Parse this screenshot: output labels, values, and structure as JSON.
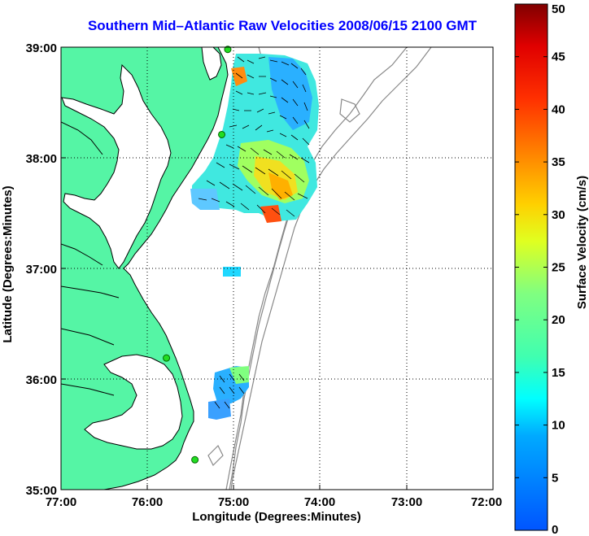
{
  "title": "Southern Mid–Atlantic Raw Velocities 2008/06/15 2100 GMT",
  "map": {
    "xlabel": "Longitude (Degrees:Minutes)",
    "ylabel": "Latitude (Degrees:Minutes)",
    "x_ticks": [
      "77:00",
      "76:00",
      "75:00",
      "74:00",
      "73:00",
      "72:00"
    ],
    "y_ticks": [
      "39:00",
      "38:00",
      "37:00",
      "36:00",
      "35:00"
    ],
    "lon_range": [
      -77,
      -72
    ],
    "lat_range": [
      35,
      39
    ],
    "grid": "dotted",
    "land_color": "#55f5a5",
    "coast_color": "#000000",
    "bathymetry_color": "#888888"
  },
  "colorbar": {
    "label": "Surface Velocity (cm/s)",
    "ticks": [
      "0",
      "5",
      "10",
      "15",
      "20",
      "25",
      "30",
      "35",
      "40",
      "45",
      "50"
    ],
    "range": [
      0,
      50
    ],
    "colormap": "jet"
  },
  "stations": [
    {
      "lon": -75.07,
      "lat": 38.98
    },
    {
      "lon": -75.14,
      "lat": 38.21
    },
    {
      "lon": -75.78,
      "lat": 36.19
    },
    {
      "lon": -75.45,
      "lat": 35.27
    }
  ]
}
